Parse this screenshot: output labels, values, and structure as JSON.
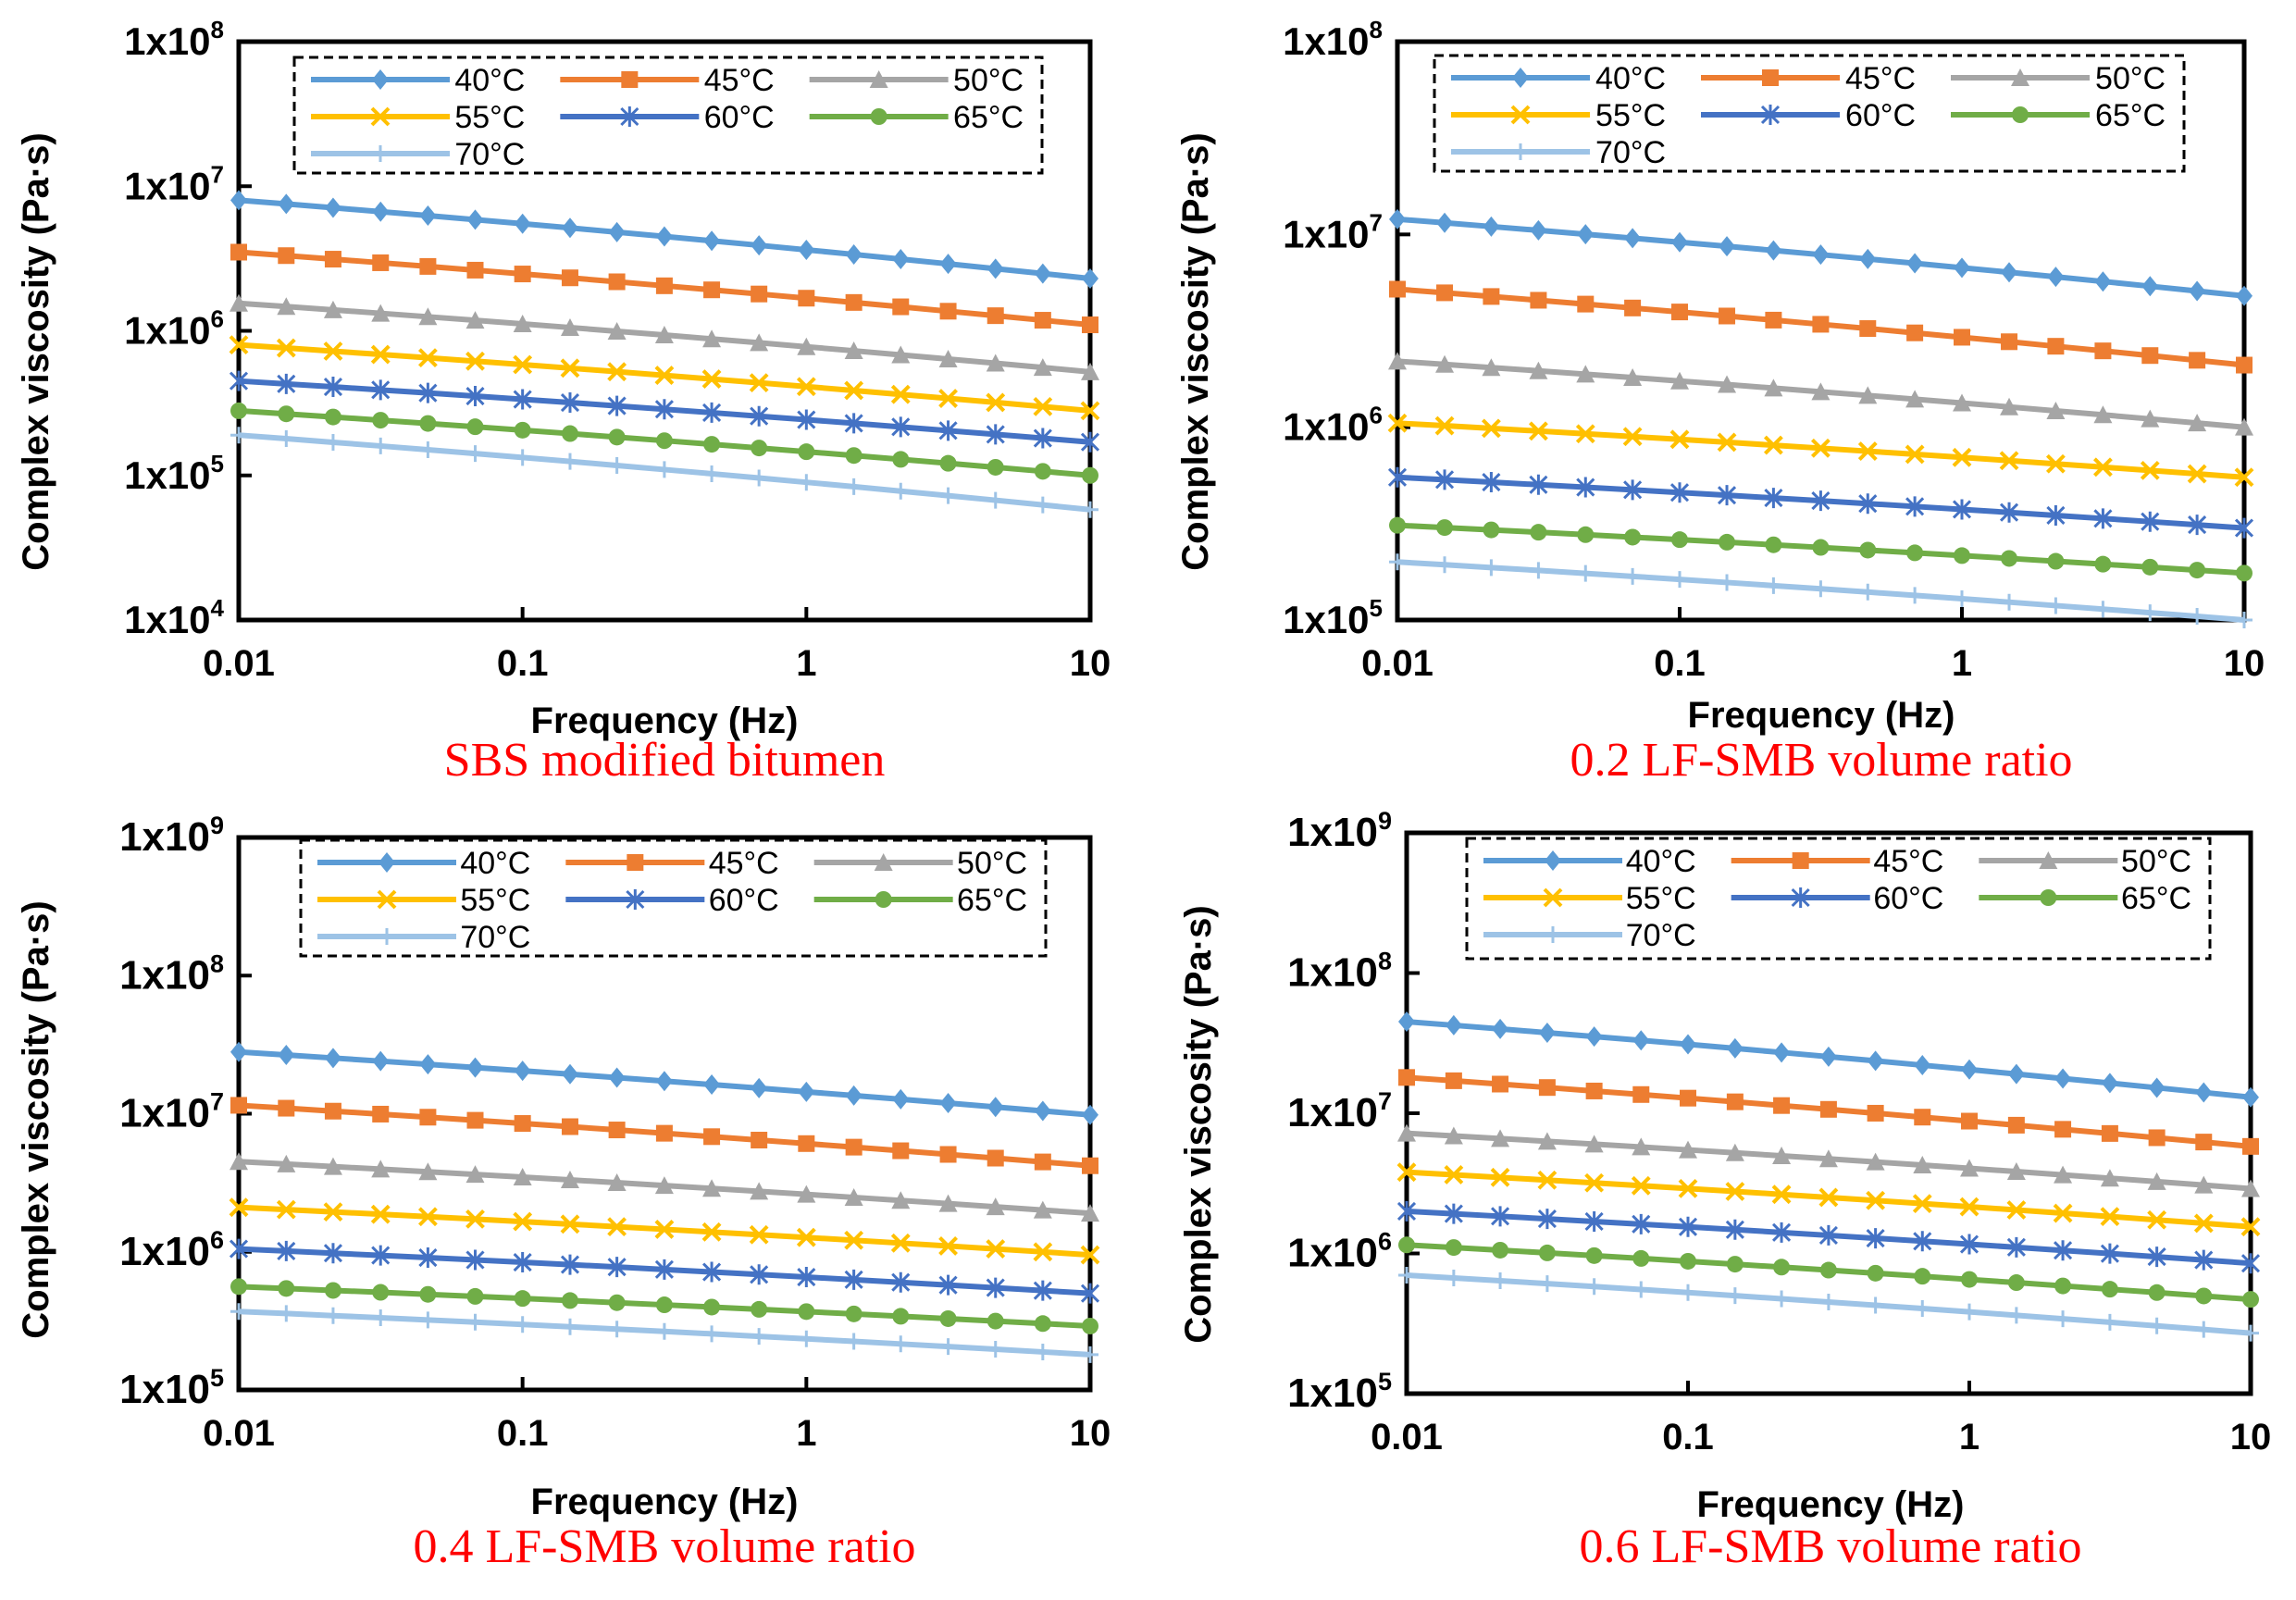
{
  "chart_data": [
    {
      "type": "line",
      "title": "SBS modified bitumen",
      "xlabel": "Frequency (Hz)",
      "ylabel": "Complex viscosity (Pa·s)",
      "xscale": "log",
      "yscale": "log",
      "xlim": [
        0.01,
        10
      ],
      "ylim": [
        10000,
        100000000
      ],
      "xticks": [
        "0.01",
        "0.1",
        "1",
        "10"
      ],
      "yticks": [
        {
          "mant": "1x10",
          "exp": "4"
        },
        {
          "mant": "1x10",
          "exp": "5"
        },
        {
          "mant": "1x10",
          "exp": "6"
        },
        {
          "mant": "1x10",
          "exp": "7"
        },
        {
          "mant": "1x10",
          "exp": "8"
        }
      ],
      "legend_position": "top",
      "x": [
        0.01,
        0.0147,
        0.0215,
        0.0316,
        0.0464,
        0.0681,
        0.1,
        0.147,
        0.215,
        0.316,
        0.464,
        0.681,
        1,
        1.47,
        2.15,
        3.16,
        4.64,
        6.81,
        10
      ],
      "series": [
        {
          "name": "40°C",
          "start": 8000000,
          "end": 2300000
        },
        {
          "name": "45°C",
          "start": 3500000,
          "end": 1100000
        },
        {
          "name": "50°C",
          "start": 1550000,
          "end": 520000
        },
        {
          "name": "55°C",
          "start": 800000,
          "end": 280000
        },
        {
          "name": "60°C",
          "start": 450000,
          "end": 170000
        },
        {
          "name": "65°C",
          "start": 280000,
          "end": 100000
        },
        {
          "name": "70°C",
          "start": 190000,
          "end": 58000
        }
      ]
    },
    {
      "type": "line",
      "title": "0.2 LF-SMB  volume ratio",
      "xlabel": "Frequency (Hz)",
      "ylabel": "Complex viscosity (Pa·s)",
      "xscale": "log",
      "yscale": "log",
      "xlim": [
        0.01,
        10
      ],
      "ylim": [
        100000,
        100000000
      ],
      "xticks": [
        "0.01",
        "0.1",
        "1",
        "10"
      ],
      "yticks": [
        {
          "mant": "1x10",
          "exp": "5"
        },
        {
          "mant": "1x10",
          "exp": "6"
        },
        {
          "mant": "1x10",
          "exp": "7"
        },
        {
          "mant": "1x10",
          "exp": "8"
        }
      ],
      "legend_position": "top",
      "x": [
        0.01,
        0.0147,
        0.0215,
        0.0316,
        0.0464,
        0.0681,
        0.1,
        0.147,
        0.215,
        0.316,
        0.464,
        0.681,
        1,
        1.47,
        2.15,
        3.16,
        4.64,
        6.81,
        10
      ],
      "series": [
        {
          "name": "40°C",
          "start": 12000000,
          "end": 4800000
        },
        {
          "name": "45°C",
          "start": 5200000,
          "end": 2100000
        },
        {
          "name": "50°C",
          "start": 2200000,
          "end": 1000000
        },
        {
          "name": "55°C",
          "start": 1050000,
          "end": 550000
        },
        {
          "name": "60°C",
          "start": 550000,
          "end": 300000
        },
        {
          "name": "65°C",
          "start": 310000,
          "end": 175000
        },
        {
          "name": "70°C",
          "start": 200000,
          "end": 100000
        }
      ]
    },
    {
      "type": "line",
      "title": "0.4 LF-SMB  volume ratio",
      "xlabel": "Frequency (Hz)",
      "ylabel": "Complex viscosity (Pa·s)",
      "xscale": "log",
      "yscale": "log",
      "xlim": [
        0.01,
        10
      ],
      "ylim": [
        100000,
        1000000000
      ],
      "xticks": [
        "0.01",
        "0.1",
        "1",
        "10"
      ],
      "yticks": [
        {
          "mant": "1x10",
          "exp": "5"
        },
        {
          "mant": "1x10",
          "exp": "6"
        },
        {
          "mant": "1x10",
          "exp": "7"
        },
        {
          "mant": "1x10",
          "exp": "8"
        },
        {
          "mant": "1x10",
          "exp": "9"
        }
      ],
      "legend_position": "top",
      "x": [
        0.01,
        0.0147,
        0.0215,
        0.0316,
        0.0464,
        0.0681,
        0.1,
        0.147,
        0.215,
        0.316,
        0.464,
        0.681,
        1,
        1.47,
        2.15,
        3.16,
        4.64,
        6.81,
        10
      ],
      "series": [
        {
          "name": "40°C",
          "start": 28000000,
          "end": 9800000
        },
        {
          "name": "45°C",
          "start": 11500000,
          "end": 4200000
        },
        {
          "name": "50°C",
          "start": 4500000,
          "end": 1900000
        },
        {
          "name": "55°C",
          "start": 2100000,
          "end": 950000
        },
        {
          "name": "60°C",
          "start": 1050000,
          "end": 500000
        },
        {
          "name": "65°C",
          "start": 560000,
          "end": 290000
        },
        {
          "name": "70°C",
          "start": 370000,
          "end": 180000
        }
      ]
    },
    {
      "type": "line",
      "title": "0.6 LF-SMB  volume ratio",
      "xlabel": "Frequency (Hz)",
      "ylabel": "Complex viscosity (Pa·s)",
      "xscale": "log",
      "yscale": "log",
      "xlim": [
        0.01,
        10
      ],
      "ylim": [
        100000,
        1000000000
      ],
      "xticks": [
        "0.01",
        "0.1",
        "1",
        "10"
      ],
      "yticks": [
        {
          "mant": "1x10",
          "exp": "5"
        },
        {
          "mant": "1x10",
          "exp": "6"
        },
        {
          "mant": "1x10",
          "exp": "7"
        },
        {
          "mant": "1x10",
          "exp": "8"
        },
        {
          "mant": "1x10",
          "exp": "9"
        }
      ],
      "legend_position": "top",
      "x": [
        0.01,
        0.0147,
        0.0215,
        0.0316,
        0.0464,
        0.0681,
        0.1,
        0.147,
        0.215,
        0.316,
        0.464,
        0.681,
        1,
        1.47,
        2.15,
        3.16,
        4.64,
        6.81,
        10
      ],
      "series": [
        {
          "name": "40°C",
          "start": 45000000,
          "end": 13000000
        },
        {
          "name": "45°C",
          "start": 18000000,
          "end": 5800000
        },
        {
          "name": "50°C",
          "start": 7200000,
          "end": 2900000
        },
        {
          "name": "55°C",
          "start": 3800000,
          "end": 1550000
        },
        {
          "name": "60°C",
          "start": 2000000,
          "end": 850000
        },
        {
          "name": "65°C",
          "start": 1150000,
          "end": 470000
        },
        {
          "name": "70°C",
          "start": 700000,
          "end": 270000
        }
      ]
    }
  ],
  "series_styles": [
    {
      "color": "#5b9bd5",
      "marker": "diamond"
    },
    {
      "color": "#ed7d31",
      "marker": "square"
    },
    {
      "color": "#a5a5a5",
      "marker": "triangle"
    },
    {
      "color": "#ffc000",
      "marker": "x"
    },
    {
      "color": "#4472c4",
      "marker": "star"
    },
    {
      "color": "#70ad47",
      "marker": "circle"
    },
    {
      "color": "#9dc3e6",
      "marker": "plus"
    }
  ]
}
